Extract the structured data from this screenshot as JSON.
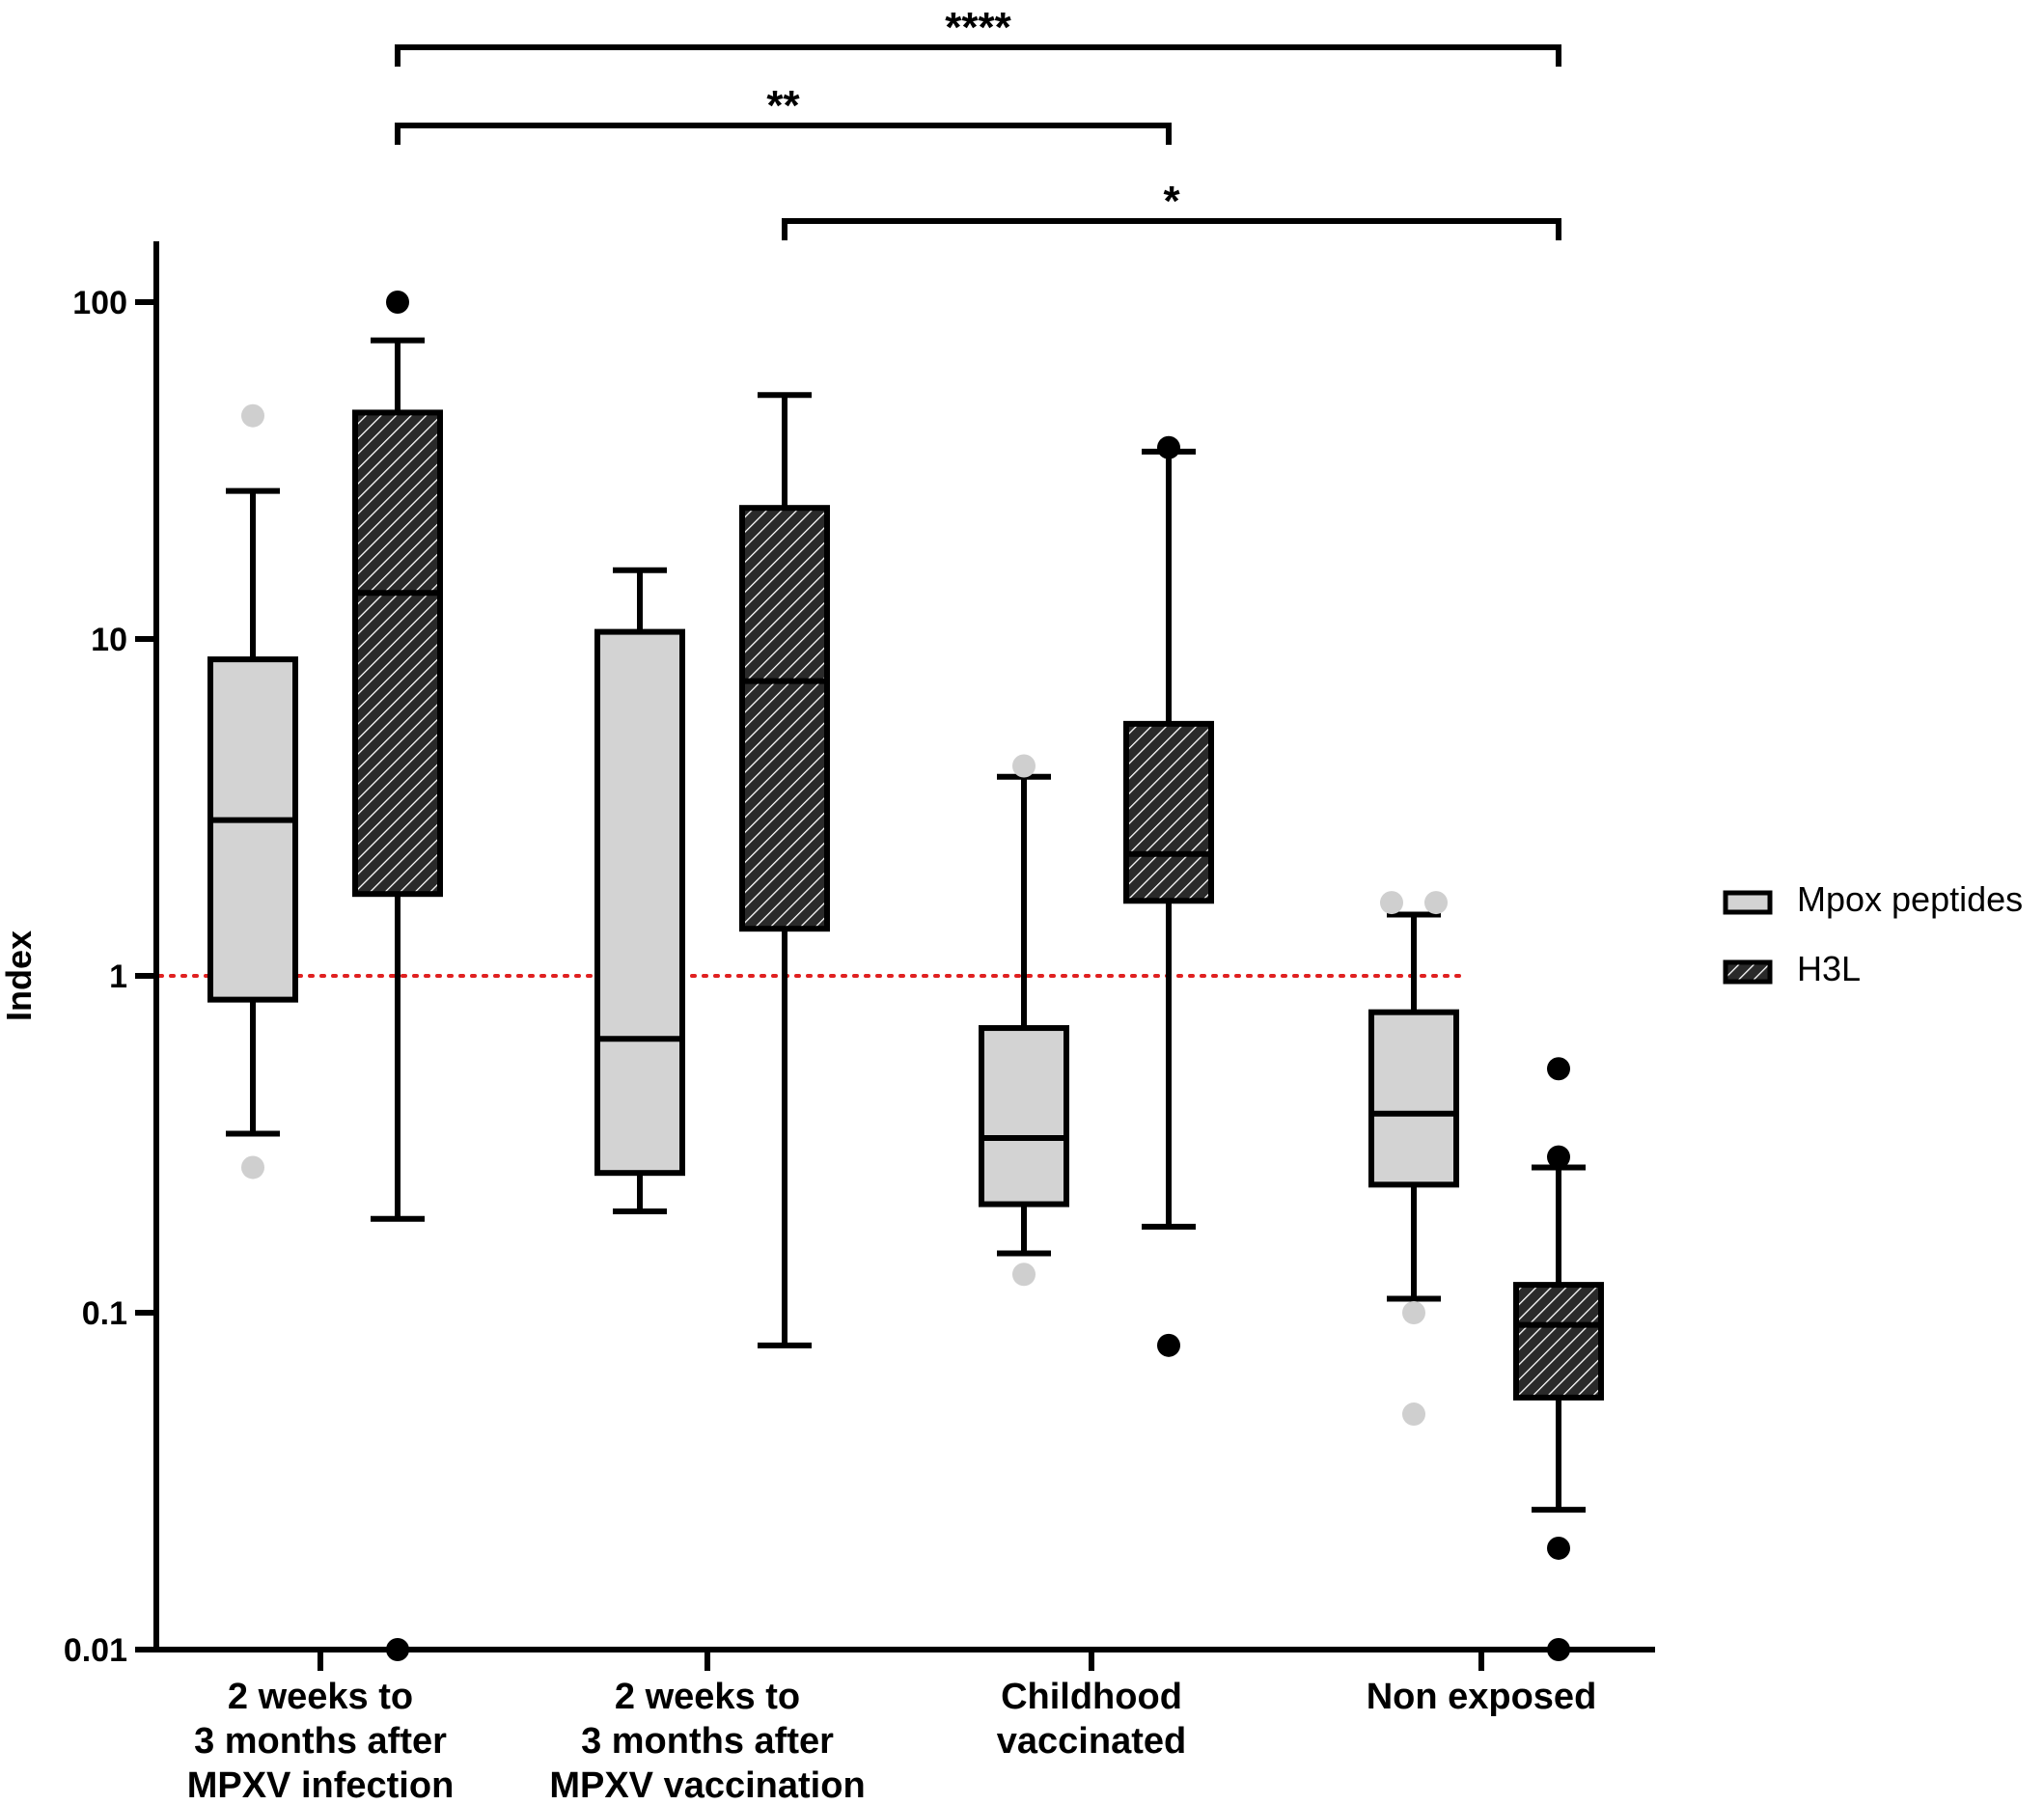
{
  "chart_data": {
    "type": "box",
    "ylabel": "Index",
    "xlabel": "",
    "yscale": "log",
    "ylim": [
      0.01,
      100
    ],
    "yticks": [
      {
        "value": 0.01,
        "label": "0.01"
      },
      {
        "value": 0.1,
        "label": "0.1"
      },
      {
        "value": 1,
        "label": "1"
      },
      {
        "value": 10,
        "label": "10"
      },
      {
        "value": 100,
        "label": "100"
      }
    ],
    "categories": [
      [
        "2 weeks to",
        "3 months after",
        "MPXV infection"
      ],
      [
        "2 weeks to",
        "3 months after",
        "MPXV vaccination"
      ],
      [
        "Childhood",
        "vaccinated"
      ],
      [
        "Non exposed"
      ]
    ],
    "threshold": {
      "value": 1,
      "color": "#e02020",
      "style": "dotted"
    },
    "legend": {
      "position": "right"
    },
    "series": [
      {
        "name": "Mpox peptides",
        "fill": "#d3d3d3",
        "pattern": "none",
        "outlier_color": "#cfcfcf",
        "boxes": [
          {
            "whisker_low": 0.34,
            "q1": 0.85,
            "median": 2.9,
            "q3": 8.7,
            "whisker_high": 27.5,
            "outliers": [
              0.27,
              46
            ]
          },
          {
            "whisker_low": 0.2,
            "q1": 0.26,
            "median": 0.65,
            "q3": 10.5,
            "whisker_high": 16,
            "outliers": []
          },
          {
            "whisker_low": 0.15,
            "q1": 0.21,
            "median": 0.33,
            "q3": 0.7,
            "whisker_high": 3.9,
            "outliers": [
              0.13,
              4.2
            ]
          },
          {
            "whisker_low": 0.11,
            "q1": 0.24,
            "median": 0.39,
            "q3": 0.78,
            "whisker_high": 1.52,
            "outliers": [
              0.1,
              0.05,
              1.65,
              1.65
            ]
          }
        ]
      },
      {
        "name": "H3L",
        "fill": "#333333",
        "pattern": "hatched",
        "outlier_color": "#000000",
        "boxes": [
          {
            "whisker_low": 0.19,
            "q1": 1.75,
            "median": 13.7,
            "q3": 47,
            "whisker_high": 77,
            "outliers": [
              100,
              0.01
            ]
          },
          {
            "whisker_low": 0.08,
            "q1": 1.38,
            "median": 7.5,
            "q3": 24.5,
            "whisker_high": 53,
            "outliers": []
          },
          {
            "whisker_low": 0.18,
            "q1": 1.67,
            "median": 2.3,
            "q3": 5.6,
            "whisker_high": 36,
            "outliers": [
              37,
              0.08
            ]
          },
          {
            "whisker_low": 0.026,
            "q1": 0.056,
            "median": 0.092,
            "q3": 0.121,
            "whisker_high": 0.27,
            "outliers": [
              0.53,
              0.29,
              0.02,
              0.01
            ]
          }
        ]
      }
    ],
    "significance": [
      {
        "label": "****",
        "from": 0,
        "to": 3,
        "series": "H3L"
      },
      {
        "label": "**",
        "from": 0,
        "to": 2,
        "series": "H3L"
      },
      {
        "label": "*",
        "from": 1,
        "to": 3,
        "series": "H3L"
      }
    ]
  }
}
